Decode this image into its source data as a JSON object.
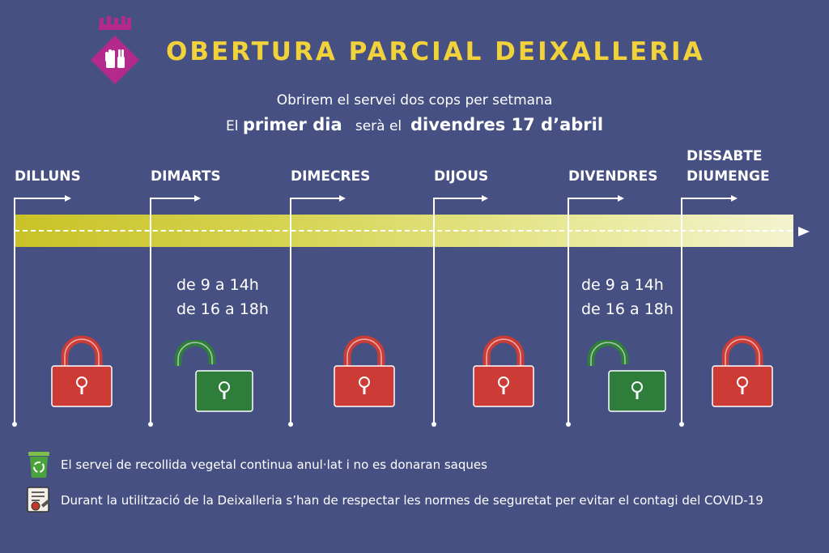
{
  "header": {
    "title": "OBERTURA PARCIAL DEIXALLERIA",
    "subtitle": "Obrirem el servei dos cops per setmana",
    "first_day": {
      "part1": "El",
      "part2": "primer dia",
      "part3": "serà el",
      "part4": "divendres 17 d’abril"
    }
  },
  "days": [
    {
      "label": "DILLUNS",
      "status": "closed"
    },
    {
      "label": "DIMARTS",
      "status": "open",
      "hours": [
        "de 9 a 14h",
        "de 16 a 18h"
      ]
    },
    {
      "label": "DIMECRES",
      "status": "closed"
    },
    {
      "label": "DIJOUS",
      "status": "closed"
    },
    {
      "label": "DIVENDRES",
      "status": "open",
      "hours": [
        "de 9 a 14h",
        "de 16 a 18h"
      ]
    },
    {
      "label": "DISSABTE",
      "label2": "DIUMENGE",
      "status": "closed"
    }
  ],
  "colors": {
    "background": "#465082",
    "title": "#f2d23a",
    "closed_lock": "#cc3b35",
    "open_lock": "#2e7d3a",
    "timeline": "#c9c227",
    "crest": "#b42a8c"
  },
  "footer": {
    "note1": "El servei de recollida vegetal continua anul·lat i no es donaran saques",
    "note2": "Durant la utilització de la Deixalleria s’han de respectar les normes de seguretat per evitar el contagi del COVID-19",
    "icon1": "recycle-bin-icon",
    "icon2": "document-rules-icon"
  }
}
